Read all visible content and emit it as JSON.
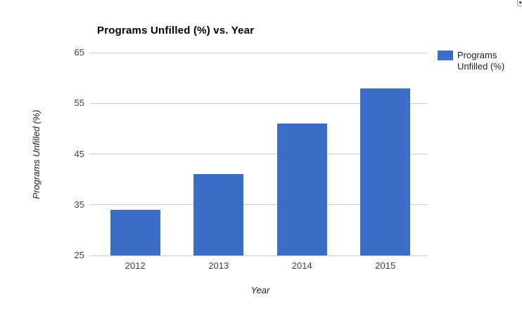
{
  "widget": {
    "menu_button": "chart-options"
  },
  "chart_data": {
    "type": "bar",
    "title": "Programs Unfilled (%) vs. Year",
    "xlabel": "Year",
    "ylabel": "Programs Unfilled (%)",
    "categories": [
      "2012",
      "2013",
      "2014",
      "2015"
    ],
    "values": [
      34,
      41,
      51,
      58
    ],
    "series": [
      {
        "name": "Programs Unfilled (%)",
        "values": [
          34,
          41,
          51,
          58
        ]
      }
    ],
    "legend_entries": [
      "Programs Unfilled (%)"
    ],
    "legend_position": "right",
    "ylim": [
      25,
      65
    ],
    "yticks": [
      25,
      35,
      45,
      55,
      65
    ],
    "grid": true,
    "bar_color": "#3b6ec6",
    "gridline_color": "#cccccc",
    "tick_text_color": "#424242"
  }
}
